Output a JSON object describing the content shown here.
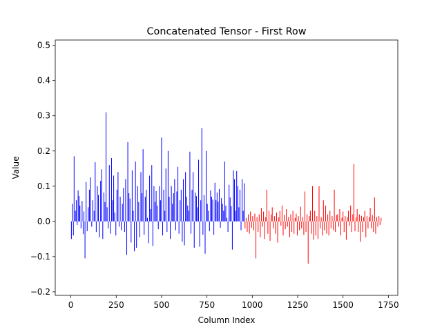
{
  "chart_data": {
    "type": "bar",
    "title": "Concatenated Tensor - First Row",
    "xlabel": "Column Index",
    "ylabel": "Value",
    "xlim": [
      -86,
      1802
    ],
    "ylim": [
      -0.21,
      0.515
    ],
    "x_ticks": [
      0,
      250,
      500,
      750,
      1000,
      1250,
      1500,
      1750
    ],
    "y_ticks": [
      -0.2,
      -0.1,
      0.0,
      0.1,
      0.2,
      0.3,
      0.4,
      0.5
    ],
    "x_tick_labels": [
      "0",
      "250",
      "500",
      "750",
      "1000",
      "1250",
      "1500",
      "1750"
    ],
    "y_tick_labels": [
      "−0.2",
      "−0.1",
      "0.0",
      "0.1",
      "0.2",
      "0.3",
      "0.4",
      "0.5"
    ],
    "series": [
      {
        "color": "#0000ff",
        "x": [
          3,
          8,
          14,
          18,
          25,
          30,
          35,
          40,
          45,
          50,
          56,
          62,
          68,
          72,
          78,
          84,
          90,
          96,
          102,
          108,
          115,
          121,
          128,
          134,
          140,
          146,
          152,
          158,
          164,
          170,
          176,
          182,
          188,
          194,
          200,
          206,
          212,
          218,
          224,
          230,
          236,
          242,
          248,
          254,
          260,
          266,
          272,
          278,
          284,
          290,
          296,
          302,
          308,
          314,
          320,
          326,
          332,
          338,
          344,
          350,
          356,
          362,
          368,
          374,
          380,
          386,
          392,
          398,
          404,
          410,
          416,
          422,
          428,
          434,
          440,
          446,
          452,
          458,
          464,
          470,
          476,
          482,
          488,
          494,
          500,
          506,
          512,
          518,
          524,
          530,
          536,
          542,
          548,
          554,
          560,
          566,
          572,
          578,
          584,
          590,
          596,
          602,
          608,
          614,
          620,
          626,
          632,
          638,
          644,
          650,
          656,
          662,
          668,
          674,
          680,
          686,
          692,
          698,
          704,
          710,
          716,
          722,
          728,
          734,
          740,
          746,
          752,
          758,
          764,
          770,
          776,
          782,
          788,
          794,
          800,
          806,
          812,
          818,
          824,
          830,
          836,
          842,
          848,
          854,
          860,
          866,
          872,
          878,
          884,
          890,
          896,
          902,
          908,
          914,
          920,
          926,
          932,
          938,
          944,
          950,
          956
        ],
        "values": [
          -0.05,
          0.05,
          -0.04,
          0.185,
          0.03,
          0.06,
          -0.01,
          0.088,
          0.072,
          0.045,
          -0.02,
          0.058,
          -0.036,
          0.028,
          -0.105,
          0.112,
          -0.028,
          0.04,
          0.09,
          0.125,
          -0.015,
          0.06,
          0.03,
          0.168,
          -0.03,
          0.1,
          0.075,
          -0.045,
          0.115,
          0.148,
          -0.05,
          0.082,
          0.055,
          0.31,
          0.04,
          -0.02,
          0.16,
          -0.035,
          0.18,
          0.06,
          0.13,
          0.025,
          -0.04,
          0.09,
          0.14,
          -0.015,
          0.07,
          -0.025,
          0.05,
          0.095,
          -0.03,
          0.12,
          -0.095,
          0.225,
          0.08,
          0.065,
          -0.06,
          0.145,
          0.03,
          -0.085,
          0.17,
          -0.075,
          0.1,
          0.055,
          -0.045,
          0.14,
          0.08,
          0.205,
          -0.038,
          0.07,
          0.09,
          0.01,
          -0.062,
          0.13,
          0.035,
          0.16,
          -0.07,
          0.1,
          0.055,
          0.086,
          0.045,
          -0.022,
          0.1,
          0.06,
          0.238,
          -0.04,
          0.09,
          0.03,
          0.15,
          -0.03,
          0.2,
          0.07,
          -0.05,
          0.1,
          0.05,
          0.08,
          0.12,
          -0.025,
          0.085,
          0.155,
          -0.035,
          0.06,
          0.09,
          -0.058,
          0.12,
          -0.068,
          0.14,
          0.07,
          0.045,
          0.03,
          0.198,
          -0.035,
          0.09,
          0.14,
          -0.075,
          0.082,
          0.072,
          0.04,
          0.175,
          -0.072,
          0.06,
          0.265,
          -0.038,
          0.075,
          -0.092,
          0.2,
          0.05,
          0.03,
          -0.028,
          0.088,
          0.07,
          0.062,
          -0.038,
          0.11,
          0.06,
          0.082,
          0.056,
          0.092,
          -0.018,
          0.066,
          0.05,
          0.03,
          0.17,
          0.045,
          0.01,
          -0.03,
          0.104,
          0.068,
          0.043,
          -0.08,
          0.145,
          0.12,
          0.03,
          0.143,
          0.1,
          0.04,
          0.09,
          -0.025,
          0.12,
          0.03,
          0.108
        ]
      },
      {
        "color": "#ff0000",
        "x": [
          960,
          966,
          972,
          978,
          984,
          990,
          996,
          1002,
          1008,
          1014,
          1020,
          1026,
          1032,
          1038,
          1044,
          1050,
          1056,
          1062,
          1068,
          1074,
          1080,
          1086,
          1092,
          1098,
          1104,
          1110,
          1116,
          1122,
          1128,
          1134,
          1140,
          1146,
          1152,
          1158,
          1164,
          1170,
          1176,
          1182,
          1188,
          1194,
          1200,
          1206,
          1212,
          1218,
          1224,
          1230,
          1236,
          1242,
          1248,
          1254,
          1260,
          1266,
          1272,
          1278,
          1284,
          1290,
          1296,
          1302,
          1308,
          1314,
          1320,
          1326,
          1332,
          1338,
          1344,
          1350,
          1356,
          1362,
          1368,
          1374,
          1380,
          1386,
          1392,
          1398,
          1404,
          1410,
          1416,
          1422,
          1428,
          1434,
          1440,
          1446,
          1452,
          1458,
          1464,
          1470,
          1476,
          1482,
          1488,
          1494,
          1500,
          1506,
          1512,
          1518,
          1524,
          1530,
          1536,
          1542,
          1548,
          1554,
          1560,
          1566,
          1572,
          1578,
          1584,
          1590,
          1596,
          1602,
          1608,
          1614,
          1620,
          1626,
          1632,
          1638,
          1644,
          1650,
          1656,
          1662,
          1668,
          1674,
          1680,
          1686,
          1692,
          1698,
          1704,
          1710
        ],
        "values": [
          -0.02,
          0.01,
          -0.03,
          0.02,
          -0.035,
          0.028,
          -0.018,
          0.015,
          -0.025,
          0.022,
          -0.105,
          0.012,
          -0.03,
          0.02,
          -0.045,
          0.038,
          -0.015,
          0.028,
          -0.05,
          0.012,
          0.09,
          -0.035,
          0.03,
          -0.055,
          0.02,
          0.04,
          -0.02,
          0.015,
          -0.035,
          0.025,
          -0.06,
          0.012,
          0.03,
          -0.012,
          0.045,
          -0.04,
          0.018,
          -0.022,
          0.035,
          -0.015,
          0.012,
          -0.045,
          0.02,
          -0.03,
          0.03,
          -0.035,
          0.01,
          0.022,
          -0.04,
          0.015,
          -0.025,
          0.042,
          -0.02,
          0.012,
          -0.038,
          0.085,
          -0.03,
          0.02,
          -0.12,
          0.015,
          0.03,
          -0.035,
          0.1,
          -0.052,
          0.03,
          -0.04,
          0.015,
          -0.05,
          0.1,
          -0.02,
          0.012,
          -0.04,
          0.06,
          -0.025,
          0.045,
          -0.035,
          0.02,
          -0.04,
          0.03,
          -0.02,
          0.015,
          -0.025,
          0.09,
          -0.03,
          0.018,
          0.02,
          -0.015,
          0.035,
          -0.04,
          0.01,
          0.028,
          -0.03,
          0.015,
          -0.052,
          0.012,
          0.03,
          -0.012,
          0.045,
          -0.03,
          0.02,
          0.163,
          -0.028,
          0.012,
          0.035,
          -0.03,
          0.02,
          -0.058,
          0.016,
          -0.03,
          0.012,
          0.03,
          -0.045,
          0.015,
          -0.02,
          0.012,
          0.038,
          -0.02,
          0.018,
          -0.03,
          0.068,
          -0.035,
          0.012,
          -0.015,
          0.015,
          -0.01,
          0.01
        ]
      }
    ]
  }
}
